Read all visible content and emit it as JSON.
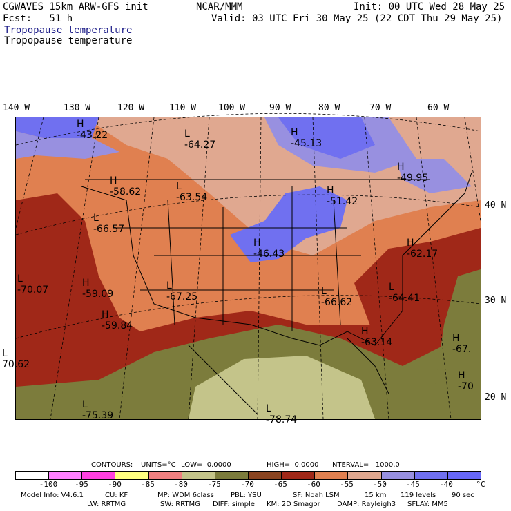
{
  "header": {
    "left_line1": "CGWAVES 15km ARW-GFS init",
    "left_line2": "Fcst:   51 h",
    "center": "NCAR/MMM",
    "init": "Init: 00 UTC Wed 28 May 25",
    "valid": "Valid: 03 UTC Fri 30 May 25 (22 CDT Thu 29 May 25)",
    "field_line1": "Tropopause temperature",
    "field_line2": "Tropopause temperature"
  },
  "longitudes": [
    "140 W",
    "130 W",
    "120 W",
    "110 W",
    "100 W",
    "90 W",
    "80 W",
    "70 W",
    "60 W"
  ],
  "latitudes": [
    "40 N",
    "30 N",
    "20 N"
  ],
  "map_labels": {
    "centers": [
      {
        "type": "H",
        "value": "-43.22"
      },
      {
        "type": "L",
        "value": "-64.27"
      },
      {
        "type": "H",
        "value": "-45.13"
      },
      {
        "type": "H",
        "value": "-58.62"
      },
      {
        "type": "L",
        "value": "-63.54"
      },
      {
        "type": "H",
        "value": "-51.42"
      },
      {
        "type": "H",
        "value": "-49.95"
      },
      {
        "type": "L",
        "value": "-66.57"
      },
      {
        "type": "H",
        "value": "-46.43"
      },
      {
        "type": "H",
        "value": "-62.17"
      },
      {
        "type": "L",
        "value": "-70.07"
      },
      {
        "type": "H",
        "value": "-59.09"
      },
      {
        "type": "L",
        "value": "-67.25"
      },
      {
        "type": "L",
        "value": "-66.62"
      },
      {
        "type": "L",
        "value": "-64.41"
      },
      {
        "type": "H",
        "value": "-59.84"
      },
      {
        "type": "H",
        "value": "-63.14"
      },
      {
        "type": "H",
        "value": "-67."
      },
      {
        "type": "L",
        "value": "70.62"
      },
      {
        "type": "H",
        "value": "-70"
      },
      {
        "type": "L",
        "value": "-75.39"
      },
      {
        "type": "L",
        "value": "-78.74"
      }
    ]
  },
  "contours": {
    "label": "CONTOURS:",
    "units": "UNITS=°C",
    "low": "LOW=  0.0000",
    "high": "HIGH=  0.0000",
    "interval": "INTERVAL=   1000.0"
  },
  "legend": {
    "colors": [
      "#ffffff",
      "#ff80ff",
      "#ff40e0",
      "#ffff80",
      "#f08080",
      "#c4c48a",
      "#7c7c3c",
      "#8a4420",
      "#a02818",
      "#e08050",
      "#e0a890",
      "#9890e0",
      "#7070f0",
      "#6868f8"
    ],
    "ticks": [
      "-100",
      "-95",
      "-90",
      "-85",
      "-80",
      "-75",
      "-70",
      "-65",
      "-60",
      "-55",
      "-50",
      "-45",
      "-40"
    ],
    "unit": "°C"
  },
  "footer": {
    "line1_parts": [
      "Model Info: V4.6.1",
      "CU: KF",
      "MP: WDM 6class",
      "PBL: YSU",
      "SF: Noah LSM",
      "15 km",
      "119 levels",
      "90 sec"
    ],
    "line2_parts": [
      "LW: RRTMG",
      "SW: RRTMG",
      "DIFF: simple",
      "KM: 2D Smagor",
      "DAMP: Rayleigh3",
      "SFLAY: MM5"
    ]
  }
}
